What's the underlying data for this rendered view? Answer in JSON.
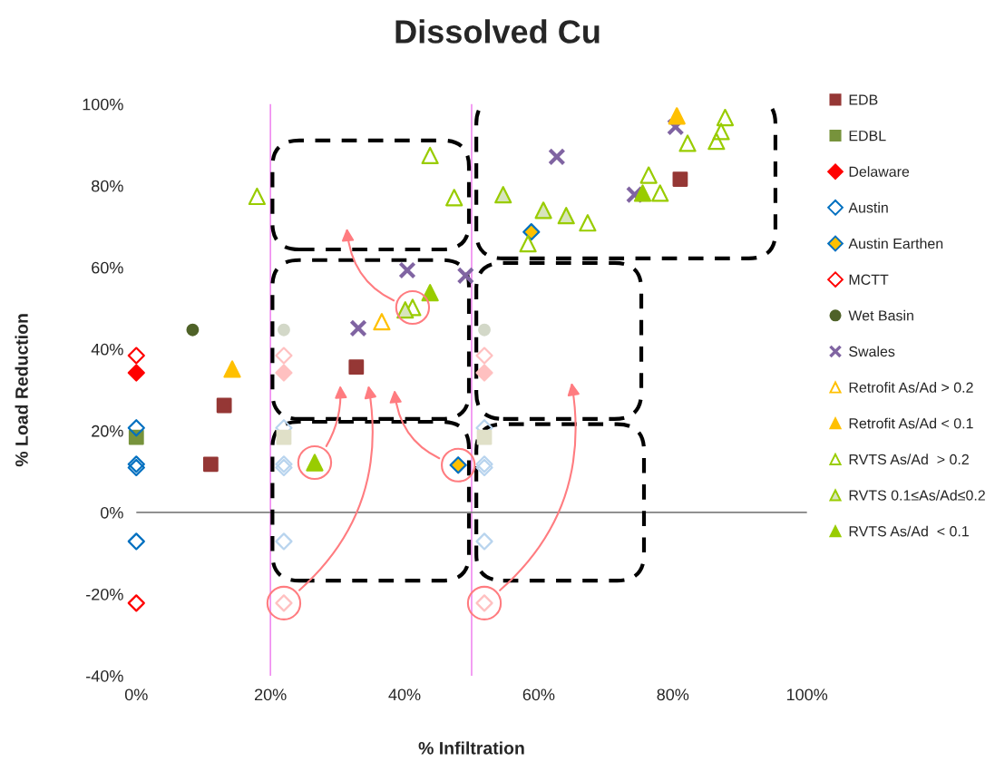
{
  "chart_data": {
    "type": "scatter",
    "title": "Dissolved Cu",
    "xlabel": "% Infiltration",
    "ylabel": "% Load Reduction",
    "xlim": [
      0,
      100
    ],
    "ylim": [
      -40,
      100
    ],
    "xticks": [
      {
        "value": 0,
        "label": "0%"
      },
      {
        "value": 20,
        "label": "20%"
      },
      {
        "value": 40,
        "label": "40%"
      },
      {
        "value": 60,
        "label": "60%"
      },
      {
        "value": 80,
        "label": "80%"
      },
      {
        "value": 100,
        "label": "100%"
      }
    ],
    "yticks": [
      {
        "value": -40,
        "label": "-40%"
      },
      {
        "value": -20,
        "label": "-20%"
      },
      {
        "value": 0,
        "label": "0%"
      },
      {
        "value": 20,
        "label": "20%"
      },
      {
        "value": 40,
        "label": "40%"
      },
      {
        "value": 60,
        "label": "60%"
      },
      {
        "value": 80,
        "label": "80%"
      },
      {
        "value": 100,
        "label": "100%"
      }
    ],
    "grid": false,
    "legend": "right",
    "ref_lines": [
      {
        "axis": "x",
        "value": 20,
        "color": "#f08cf0"
      },
      {
        "axis": "x",
        "value": 50,
        "color": "#f08cf0"
      },
      {
        "axis": "y",
        "value": 0,
        "color": "#808080"
      }
    ],
    "series": [
      {
        "marker": "circle",
        "color": "#d3d8c8",
        "x": [
          22,
          51.9
        ],
        "values": [
          44.7,
          44.7
        ]
      },
      {
        "marker": "diamond",
        "color": "#ffc0c0",
        "x": [
          22,
          51.9,
          22,
          51.9
        ],
        "values": [
          38.4,
          38.4,
          -22.2,
          -22.2
        ]
      },
      {
        "marker": "diamond",
        "color": "#ffc0c0",
        "x": [
          22,
          51.9
        ],
        "values": [
          34.2,
          34.2
        ]
      },
      {
        "marker": "diamond",
        "color": "#b8d4ee",
        "x": [
          22,
          51.9,
          22,
          51.9,
          22,
          51.9,
          22,
          51.9
        ],
        "values": [
          20.7,
          20.7,
          11.8,
          11.8,
          11.0,
          11.0,
          -7.1,
          -7.1
        ]
      },
      {
        "marker": "square",
        "color": "#e0e0c8",
        "x": [
          22,
          51.9
        ],
        "values": [
          18.4,
          18.4
        ]
      },
      {
        "name": "EDB",
        "marker": "square",
        "color": "#953735",
        "x": [
          11.1,
          13.1,
          32.8,
          81.1
        ],
        "values": [
          11.8,
          26.2,
          35.6,
          81.6
        ]
      },
      {
        "name": "EDBL",
        "marker": "square",
        "color": "#77933c",
        "x": [
          0
        ],
        "values": [
          18.4
        ]
      },
      {
        "name": "Delaware",
        "marker": "diamond",
        "color": "#ff0000",
        "x": [
          0
        ],
        "values": [
          34.2
        ]
      },
      {
        "name": "Austin",
        "marker": "diamond",
        "color": "#0070c0",
        "x": [
          0,
          0,
          0,
          0
        ],
        "values": [
          20.7,
          11.8,
          11.0,
          -7.1
        ]
      },
      {
        "name": "Austin Earthen",
        "marker": "diamond",
        "color": "#ffc000",
        "x": [
          48.0,
          58.9
        ],
        "values": [
          11.6,
          68.7
        ]
      },
      {
        "name": "MCTT",
        "marker": "diamond",
        "color": "#ff0000",
        "x": [
          0,
          0
        ],
        "values": [
          38.4,
          -22.2
        ]
      },
      {
        "name": "Wet Basin",
        "marker": "circle",
        "color": "#4f6228",
        "x": [
          8.4
        ],
        "values": [
          44.7
        ]
      },
      {
        "name": "Swales",
        "marker": "cross",
        "color": "#8064a2",
        "x": [
          40.4,
          49.1,
          33.1,
          62.7,
          74.3,
          80.4
        ],
        "values": [
          59.3,
          58.0,
          45.1,
          87.1,
          77.8,
          94.4
        ]
      },
      {
        "name": "Retrofit As/Ad > 0.2",
        "marker": "triangle",
        "color": "#ffc000",
        "x": [
          36.6
        ],
        "values": [
          46.7
        ]
      },
      {
        "name": "Retrofit As/Ad < 0.1",
        "marker": "triangle",
        "color": "#ffc000",
        "x": [
          14.3,
          80.6
        ],
        "values": [
          35.1,
          97.1
        ]
      },
      {
        "name": "RVTS As/Ad  > 0.2",
        "marker": "triangle",
        "color": "#99cc00",
        "x": [
          18.0,
          43.8,
          47.4,
          41.2,
          67.3,
          58.4,
          76.4,
          78.1,
          82.2,
          86.5,
          87.2,
          87.8
        ],
        "values": [
          77.4,
          87.4,
          77.1,
          50.2,
          70.9,
          65.8,
          82.6,
          78.2,
          90.4,
          90.9,
          93.3,
          96.7
        ]
      },
      {
        "name": "RVTS 0.1≤As/Ad≤0.2",
        "marker": "triangle",
        "color": "#d7e4bd",
        "x": [
          40.1,
          54.7,
          60.7,
          64.1
        ],
        "values": [
          49.6,
          77.8,
          74.0,
          72.7
        ]
      },
      {
        "name": "RVTS As/Ad  < 0.1",
        "marker": "triangle",
        "color": "#99cc00",
        "x": [
          43.8,
          26.6,
          75.5
        ],
        "values": [
          53.8,
          12.2,
          78.2
        ]
      }
    ]
  }
}
